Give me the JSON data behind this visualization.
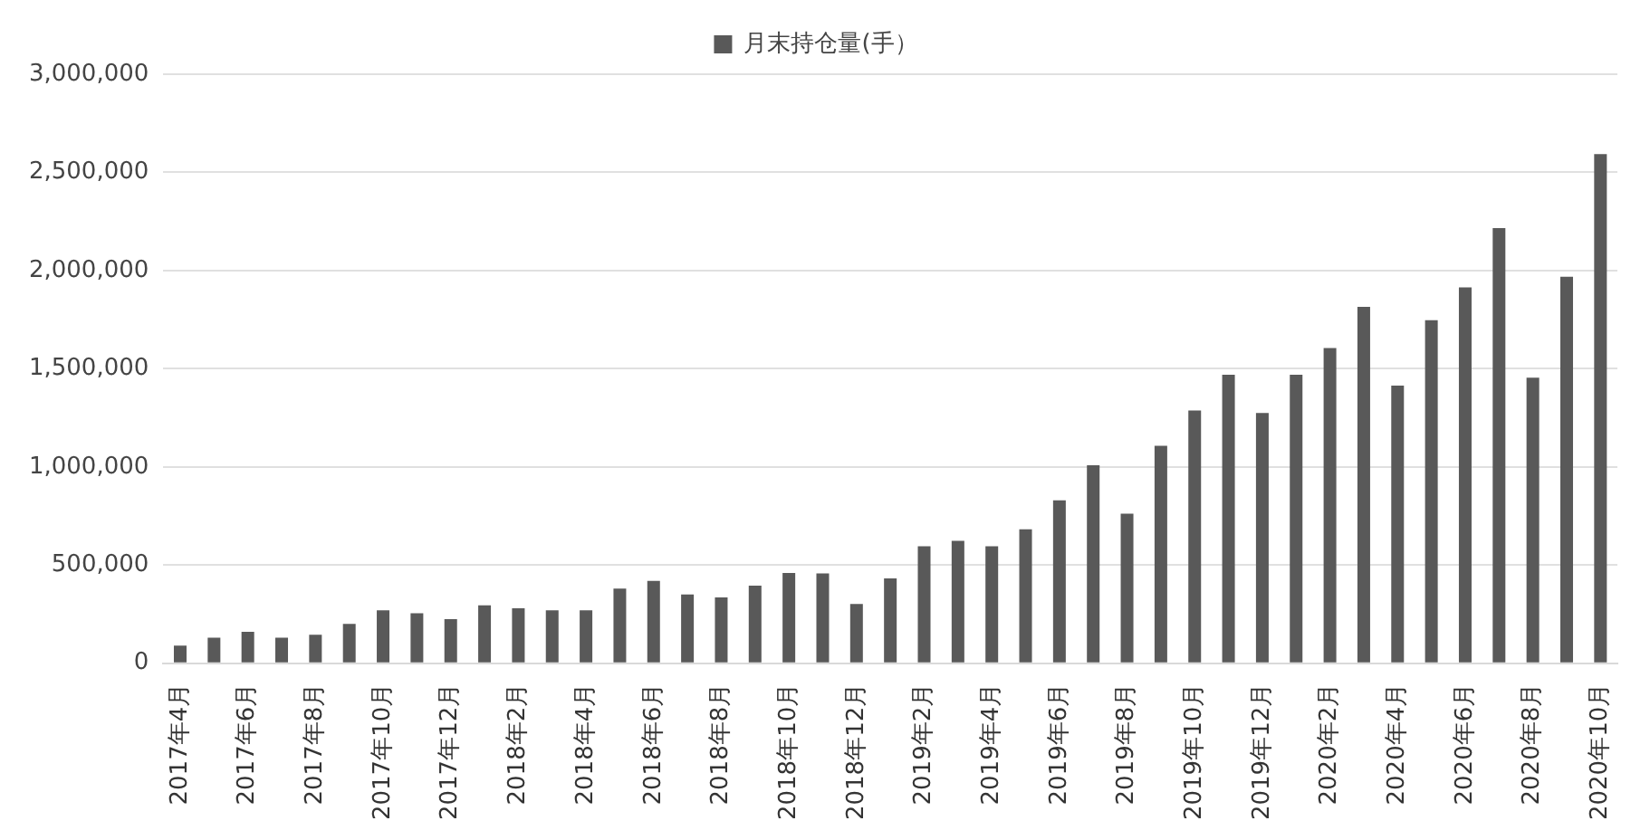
{
  "chart_data": {
    "type": "bar",
    "categories": [
      "2017年4月",
      null,
      "2017年6月",
      null,
      "2017年8月",
      null,
      "2017年10月",
      null,
      "2017年12月",
      null,
      "2018年2月",
      null,
      "2018年4月",
      null,
      "2018年6月",
      null,
      "2018年8月",
      null,
      "2018年10月",
      null,
      "2018年12月",
      null,
      "2019年2月",
      null,
      "2019年4月",
      null,
      "2019年6月",
      null,
      "2019年8月",
      null,
      "2019年10月",
      null,
      "2019年12月",
      null,
      "2020年2月",
      null,
      "2020年4月",
      null,
      "2020年6月",
      null,
      "2020年8月",
      null,
      "2020年10月"
    ],
    "series": [
      {
        "name": "月末持仓量(手）",
        "color": "#595959",
        "values": [
          90000,
          130000,
          160000,
          130000,
          145000,
          200000,
          270000,
          255000,
          225000,
          295000,
          280000,
          270000,
          270000,
          380000,
          420000,
          350000,
          335000,
          395000,
          460000,
          457000,
          302000,
          432000,
          596000,
          623000,
          596000,
          682000,
          830000,
          1009000,
          762000,
          1108000,
          1287000,
          1469000,
          1275000,
          1469000,
          1605000,
          1815000,
          1414000,
          1747000,
          1914000,
          2216000,
          1454000,
          1969000,
          2593000
        ]
      }
    ],
    "ylim": [
      0,
      3000000
    ],
    "yticks": [
      {
        "value": 0,
        "label": "0"
      },
      {
        "value": 500000,
        "label": "500,000"
      },
      {
        "value": 1000000,
        "label": "1,000,000"
      },
      {
        "value": 1500000,
        "label": "1,500,000"
      },
      {
        "value": 2000000,
        "label": "2,000,000"
      },
      {
        "value": 2500000,
        "label": "2,500,000"
      },
      {
        "value": 3000000,
        "label": "3,000,000"
      }
    ],
    "grid": "y",
    "legend": "top"
  }
}
